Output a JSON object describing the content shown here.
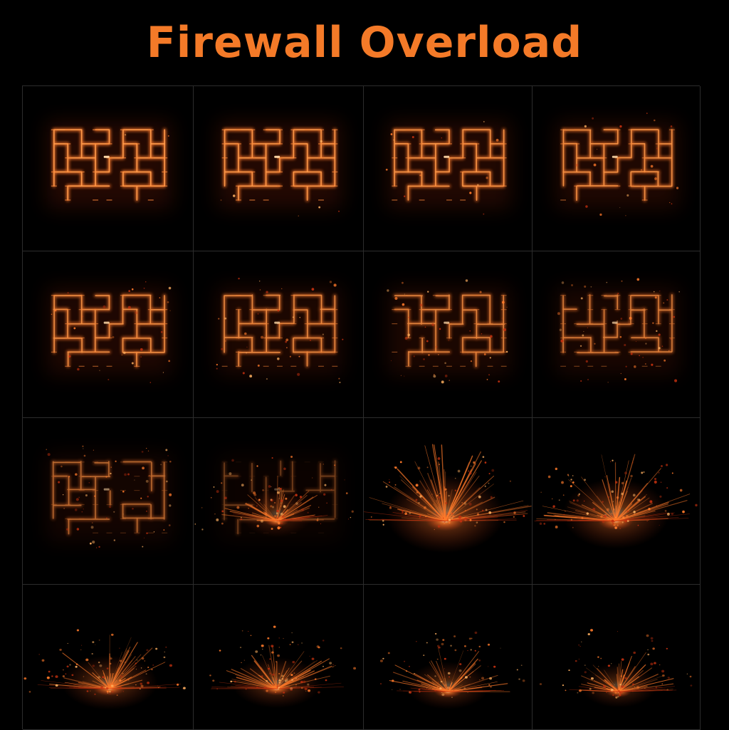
{
  "title": "Firewall Overload",
  "colors": {
    "background": "#000000",
    "title": "#f47a28",
    "grid_line": "#2c2c2c",
    "glow_hot": "#ffd9a8",
    "glow_core": "#ff7a2a",
    "glow_edge": "#c2300f"
  },
  "frames": [
    {
      "intact": 1.0,
      "burst": 0.0,
      "burst_y": 0.62,
      "embers": 0.02
    },
    {
      "intact": 0.97,
      "burst": 0.0,
      "burst_y": 0.62,
      "embers": 0.06
    },
    {
      "intact": 0.93,
      "burst": 0.0,
      "burst_y": 0.62,
      "embers": 0.12
    },
    {
      "intact": 0.88,
      "burst": 0.0,
      "burst_y": 0.62,
      "embers": 0.18
    },
    {
      "intact": 0.85,
      "burst": 0.0,
      "burst_y": 0.62,
      "embers": 0.25
    },
    {
      "intact": 0.8,
      "burst": 0.0,
      "burst_y": 0.62,
      "embers": 0.32
    },
    {
      "intact": 0.76,
      "burst": 0.0,
      "burst_y": 0.62,
      "embers": 0.4
    },
    {
      "intact": 0.7,
      "burst": 0.0,
      "burst_y": 0.62,
      "embers": 0.45
    },
    {
      "intact": 0.55,
      "burst": 0.0,
      "burst_y": 0.62,
      "embers": 0.55
    },
    {
      "intact": 0.3,
      "burst": 0.6,
      "burst_y": 0.62,
      "embers": 0.7
    },
    {
      "intact": 0.0,
      "burst": 1.0,
      "burst_y": 0.62,
      "embers": 0.8
    },
    {
      "intact": 0.0,
      "burst": 0.9,
      "burst_y": 0.62,
      "embers": 0.9
    },
    {
      "intact": 0.0,
      "burst": 0.8,
      "burst_y": 0.72,
      "embers": 0.8
    },
    {
      "intact": 0.0,
      "burst": 0.75,
      "burst_y": 0.72,
      "embers": 0.75
    },
    {
      "intact": 0.0,
      "burst": 0.7,
      "burst_y": 0.74,
      "embers": 0.7
    },
    {
      "intact": 0.0,
      "burst": 0.65,
      "burst_y": 0.74,
      "embers": 0.65
    }
  ]
}
